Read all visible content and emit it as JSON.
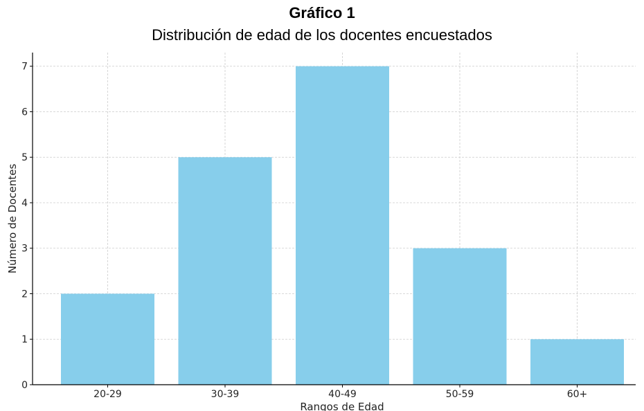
{
  "chart_data": {
    "type": "bar",
    "heading": "Gráfico 1",
    "title": "Distribución de edad de los docentes encuestados",
    "categories": [
      "20-29",
      "30-39",
      "40-49",
      "50-59",
      "60+"
    ],
    "values": [
      2,
      5,
      7,
      3,
      1
    ],
    "xlabel": "Rangos de Edad",
    "ylabel": "Número de Docentes",
    "ylim": [
      0,
      7.3
    ],
    "yticks": [
      0,
      1,
      2,
      3,
      4,
      5,
      6,
      7
    ],
    "grid": true,
    "bar_color": "#87CEEB",
    "grid_color": "#cccccc",
    "axis_color": "#000000"
  }
}
